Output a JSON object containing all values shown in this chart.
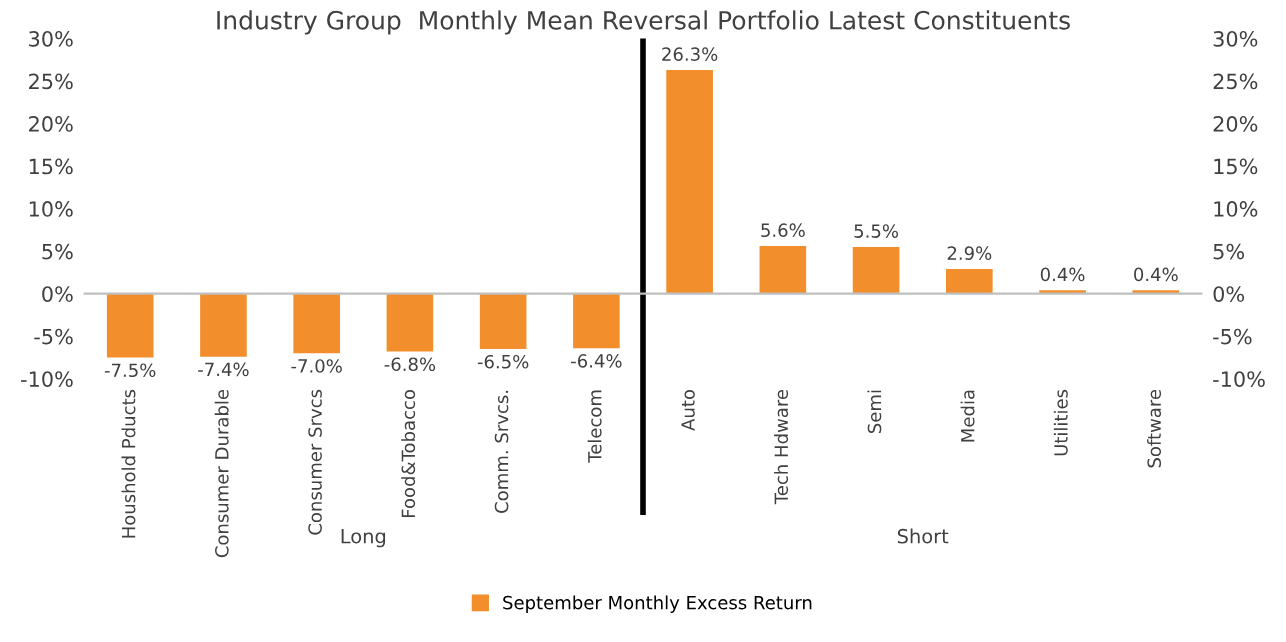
{
  "chart_data": {
    "type": "bar",
    "title": "Industry Group  Monthly Mean Reversal Portfolio Latest Constituents",
    "categories": [
      "Houshold Pducts",
      "Consumer Durable",
      "Consumer Srvcs",
      "Food&Tobacco",
      "Comm. Srvcs.",
      "Telecom",
      "Auto",
      "Tech Hdware",
      "Semi",
      "Media",
      "Utilities",
      "Software"
    ],
    "series": [
      {
        "name": "September Monthly Excess Return",
        "color": "#f28e2b",
        "values": [
          -7.5,
          -7.4,
          -7.0,
          -6.8,
          -6.5,
          -6.4,
          26.3,
          5.6,
          5.5,
          2.9,
          0.4,
          0.4
        ],
        "value_labels": [
          "-7.5%",
          "-7.4%",
          "-7.0%",
          "-6.8%",
          "-6.5%",
          "-6.4%",
          "26.3%",
          "5.6%",
          "5.5%",
          "2.9%",
          "0.4%",
          "0.4%"
        ]
      }
    ],
    "ylim": [
      -10,
      30
    ],
    "yticks": [
      {
        "value": -10,
        "label": "-10%"
      },
      {
        "value": -5,
        "label": "-5%"
      },
      {
        "value": 0,
        "label": "0%"
      },
      {
        "value": 5,
        "label": "5%"
      },
      {
        "value": 10,
        "label": "10%"
      },
      {
        "value": 15,
        "label": "15%"
      },
      {
        "value": 20,
        "label": "20%"
      },
      {
        "value": 25,
        "label": "25%"
      },
      {
        "value": 30,
        "label": "30%"
      }
    ],
    "y2lim": [
      -10,
      30
    ],
    "y2ticks": [
      {
        "value": -10,
        "label": "-10%"
      },
      {
        "value": -5,
        "label": "-5%"
      },
      {
        "value": 0,
        "label": "0%"
      },
      {
        "value": 5,
        "label": "5%"
      },
      {
        "value": 10,
        "label": "10%"
      },
      {
        "value": 15,
        "label": "15%"
      },
      {
        "value": 20,
        "label": "20%"
      },
      {
        "value": 25,
        "label": "25%"
      },
      {
        "value": 30,
        "label": "30%"
      }
    ],
    "annotations": [
      "Long",
      "Short"
    ],
    "legend": "bottom"
  }
}
